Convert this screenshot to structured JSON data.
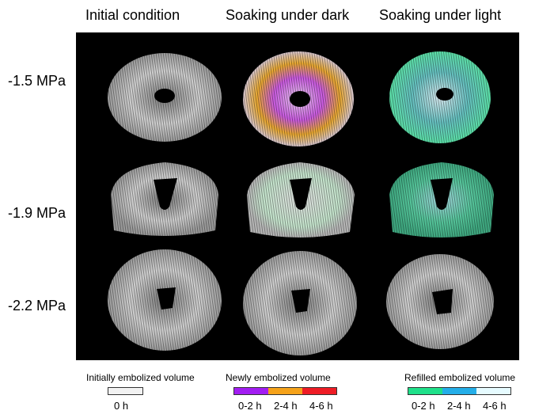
{
  "columns": [
    "Initial condition",
    "Soaking under dark",
    "Soaking under light"
  ],
  "rows": [
    "-1.5 MPa",
    "-1.9 MPa",
    "-2.2 MPa"
  ],
  "legends": [
    {
      "title": "Initially embolized volume",
      "items": [
        {
          "label": "0 h",
          "color": "#f2f2f2"
        }
      ]
    },
    {
      "title": "Newly embolized volume",
      "items": [
        {
          "label": "0-2 h",
          "color": "#a21df2"
        },
        {
          "label": "2-4 h",
          "color": "#f5a21a"
        },
        {
          "label": "4-6 h",
          "color": "#ee1c25"
        }
      ]
    },
    {
      "title": "Refilled embolized volume",
      "items": [
        {
          "label": "0-2 h",
          "color": "#1fe08a"
        },
        {
          "label": "2-4 h",
          "color": "#24aee8"
        },
        {
          "label": "4-6 h",
          "color": "#e6fbff"
        }
      ]
    }
  ]
}
